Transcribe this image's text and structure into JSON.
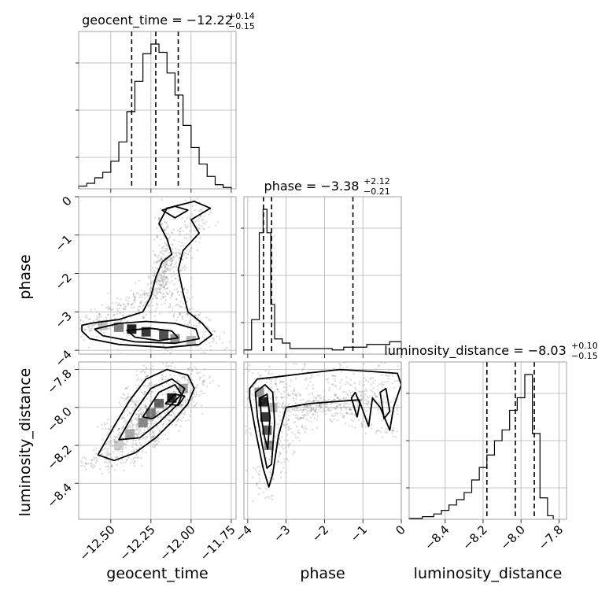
{
  "chart_data": {
    "type": "corner",
    "parameters": [
      "geocent_time",
      "phase",
      "luminosity_distance"
    ],
    "titles": {
      "geocent_time": {
        "name": "geocent_time",
        "median": "−12.22",
        "plus": "+0.14",
        "minus": "−0.15"
      },
      "phase": {
        "name": "phase",
        "median": "−3.38",
        "plus": "+2.12",
        "minus": "−0.21"
      },
      "luminosity_distance": {
        "name": "luminosity_distance",
        "median": "−8.03",
        "plus": "+0.10",
        "minus": "−0.15"
      }
    },
    "axis_labels": {
      "geocent_time": "geocent_time",
      "phase": "phase",
      "luminosity_distance": "luminosity_distance"
    },
    "ranges": {
      "geocent_time": [
        -12.7,
        -11.72
      ],
      "phase": [
        -4.1,
        0.0
      ],
      "luminosity_distance": [
        -8.59,
        -7.76
      ]
    },
    "ticks": {
      "geocent_time": [
        -12.5,
        -12.25,
        -12.0,
        -11.75
      ],
      "phase": [
        -4,
        -3,
        -2,
        -1,
        0
      ],
      "luminosity_distance": [
        -8.4,
        -8.2,
        -8.0,
        -7.8
      ]
    },
    "tick_labels": {
      "geocent_time": [
        "−12.50",
        "−12.25",
        "−12.00",
        "−11.75"
      ],
      "phase": [
        "−4",
        "−3",
        "−2",
        "−1",
        "0"
      ],
      "luminosity_distance": [
        "−8.4",
        "−8.2",
        "−8.0",
        "−7.8"
      ]
    },
    "quantiles": {
      "geocent_time": [
        -12.37,
        -12.22,
        -12.08
      ],
      "phase": [
        -3.59,
        -3.38,
        -1.26
      ],
      "luminosity_distance": [
        -8.18,
        -8.03,
        -7.93
      ]
    },
    "histograms": {
      "geocent_time": {
        "edges": [
          -12.7,
          -12.65,
          -12.6,
          -12.55,
          -12.5,
          -12.45,
          -12.4,
          -12.35,
          -12.3,
          -12.25,
          -12.2,
          -12.15,
          -12.1,
          -12.05,
          -12.0,
          -11.95,
          -11.9,
          -11.85,
          -11.8,
          -11.75
        ],
        "counts": [
          2,
          4,
          8,
          12,
          20,
          34,
          56,
          78,
          98,
          105,
          99,
          84,
          68,
          46,
          30,
          18,
          9,
          3,
          1
        ]
      },
      "phase": {
        "edges": [
          -4.1,
          -3.9,
          -3.7,
          -3.6,
          -3.5,
          -3.4,
          -3.3,
          -3.1,
          -2.9,
          -2.6,
          -2.2,
          -1.8,
          -1.5,
          -1.2,
          -0.9,
          -0.6,
          -0.3,
          0.0
        ],
        "counts": [
          3,
          25,
          88,
          105,
          88,
          36,
          11,
          8,
          4,
          4,
          4,
          3,
          5,
          5,
          7,
          7,
          9
        ]
      },
      "luminosity_distance": {
        "edges": [
          -8.59,
          -8.52,
          -8.46,
          -8.42,
          -8.38,
          -8.34,
          -8.3,
          -8.26,
          -8.22,
          -8.18,
          -8.14,
          -8.1,
          -8.06,
          -8.02,
          -7.98,
          -7.94,
          -7.9,
          -7.86,
          -7.83
        ],
        "counts": [
          1,
          3,
          6,
          10,
          16,
          22,
          30,
          44,
          58,
          72,
          88,
          100,
          122,
          136,
          162,
          96,
          24,
          4
        ]
      }
    },
    "density": {
      "phase_vs_geocent_time": [
        {
          "x": -12.37,
          "y": -3.45,
          "level": 0.95
        },
        {
          "x": -12.28,
          "y": -3.52,
          "level": 0.85
        },
        {
          "x": -12.17,
          "y": -3.6,
          "level": 0.75
        },
        {
          "x": -12.45,
          "y": -3.4,
          "level": 0.55
        },
        {
          "x": -12.1,
          "y": -3.7,
          "level": 0.45
        },
        {
          "x": -12.0,
          "y": -3.75,
          "level": 0.3
        },
        {
          "x": -12.55,
          "y": -3.35,
          "level": 0.25
        }
      ],
      "luminosity_distance_vs_geocent_time": [
        {
          "x": -12.12,
          "y": -7.95,
          "level": 0.95
        },
        {
          "x": -12.2,
          "y": -7.98,
          "level": 0.7
        },
        {
          "x": -12.25,
          "y": -8.03,
          "level": 0.6
        },
        {
          "x": -12.3,
          "y": -8.08,
          "level": 0.5
        },
        {
          "x": -12.38,
          "y": -8.14,
          "level": 0.35
        },
        {
          "x": -12.05,
          "y": -7.9,
          "level": 0.4
        },
        {
          "x": -12.45,
          "y": -8.2,
          "level": 0.2
        }
      ],
      "luminosity_distance_vs_phase": [
        {
          "x": -3.6,
          "y": -7.97,
          "level": 0.95
        },
        {
          "x": -3.55,
          "y": -8.05,
          "level": 0.85
        },
        {
          "x": -3.5,
          "y": -8.12,
          "level": 0.7
        },
        {
          "x": -3.45,
          "y": -8.2,
          "level": 0.5
        },
        {
          "x": -3.7,
          "y": -7.92,
          "level": 0.45
        },
        {
          "x": -3.35,
          "y": -8.0,
          "level": 0.3
        }
      ]
    },
    "contours": {
      "phase_vs_geocent_time": [
        [
          [
            -12.68,
            -3.35
          ],
          [
            -12.6,
            -3.28
          ],
          [
            -12.45,
            -3.2
          ],
          [
            -12.3,
            -3.0
          ],
          [
            -12.25,
            -2.6
          ],
          [
            -12.22,
            -2.1
          ],
          [
            -12.18,
            -1.7
          ],
          [
            -12.12,
            -1.5
          ],
          [
            -12.15,
            -1.1
          ],
          [
            -12.2,
            -0.7
          ],
          [
            -12.15,
            -0.3
          ],
          [
            -11.98,
            -0.12
          ],
          [
            -11.88,
            -0.3
          ],
          [
            -12.0,
            -0.6
          ],
          [
            -11.95,
            -0.95
          ],
          [
            -12.05,
            -1.4
          ],
          [
            -12.08,
            -1.9
          ],
          [
            -12.05,
            -2.5
          ],
          [
            -12.02,
            -3.0
          ],
          [
            -11.93,
            -3.3
          ],
          [
            -11.87,
            -3.6
          ],
          [
            -11.95,
            -3.85
          ],
          [
            -12.15,
            -3.93
          ],
          [
            -12.45,
            -3.85
          ],
          [
            -12.63,
            -3.7
          ],
          [
            -12.68,
            -3.5
          ],
          [
            -12.68,
            -3.35
          ]
        ],
        [
          [
            -12.6,
            -3.45
          ],
          [
            -12.45,
            -3.3
          ],
          [
            -12.28,
            -3.25
          ],
          [
            -12.1,
            -3.3
          ],
          [
            -11.97,
            -3.45
          ],
          [
            -11.95,
            -3.7
          ],
          [
            -12.1,
            -3.82
          ],
          [
            -12.35,
            -3.78
          ],
          [
            -12.55,
            -3.62
          ],
          [
            -12.6,
            -3.45
          ]
        ],
        [
          [
            -12.4,
            -3.48
          ],
          [
            -12.25,
            -3.43
          ],
          [
            -12.12,
            -3.5
          ],
          [
            -12.08,
            -3.68
          ],
          [
            -12.2,
            -3.75
          ],
          [
            -12.35,
            -3.66
          ],
          [
            -12.4,
            -3.48
          ]
        ],
        [
          [
            -12.18,
            -0.35
          ],
          [
            -12.1,
            -0.25
          ],
          [
            -12.02,
            -0.35
          ],
          [
            -12.1,
            -0.55
          ],
          [
            -12.18,
            -0.35
          ]
        ]
      ],
      "luminosity_distance_vs_geocent_time": [
        [
          [
            -12.58,
            -8.25
          ],
          [
            -12.48,
            -8.1
          ],
          [
            -12.38,
            -7.96
          ],
          [
            -12.28,
            -7.85
          ],
          [
            -12.15,
            -7.8
          ],
          [
            -12.02,
            -7.83
          ],
          [
            -11.98,
            -7.9
          ],
          [
            -12.02,
            -7.98
          ],
          [
            -12.1,
            -8.06
          ],
          [
            -12.22,
            -8.16
          ],
          [
            -12.35,
            -8.24
          ],
          [
            -12.48,
            -8.28
          ],
          [
            -12.58,
            -8.25
          ]
        ],
        [
          [
            -12.45,
            -8.17
          ],
          [
            -12.35,
            -8.02
          ],
          [
            -12.25,
            -7.9
          ],
          [
            -12.12,
            -7.85
          ],
          [
            -12.04,
            -7.9
          ],
          [
            -12.08,
            -7.98
          ],
          [
            -12.2,
            -8.08
          ],
          [
            -12.32,
            -8.16
          ],
          [
            -12.45,
            -8.17
          ]
        ],
        [
          [
            -12.3,
            -8.05
          ],
          [
            -12.2,
            -7.92
          ],
          [
            -12.1,
            -7.88
          ],
          [
            -12.06,
            -7.93
          ],
          [
            -12.14,
            -8.0
          ],
          [
            -12.24,
            -8.06
          ],
          [
            -12.3,
            -8.05
          ]
        ],
        [
          [
            -12.16,
            -7.98
          ],
          [
            -12.1,
            -7.93
          ],
          [
            -12.04,
            -7.94
          ],
          [
            -12.08,
            -7.99
          ],
          [
            -12.16,
            -7.98
          ]
        ]
      ],
      "luminosity_distance_vs_phase": [
        [
          [
            -3.95,
            -7.9
          ],
          [
            -3.75,
            -7.85
          ],
          [
            -3.3,
            -7.84
          ],
          [
            -2.5,
            -7.82
          ],
          [
            -1.6,
            -7.8
          ],
          [
            -0.8,
            -7.81
          ],
          [
            -0.1,
            -7.82
          ],
          [
            0.0,
            -7.88
          ],
          [
            -0.2,
            -8.0
          ],
          [
            -0.3,
            -8.12
          ],
          [
            -0.55,
            -8.0
          ],
          [
            -0.75,
            -7.95
          ],
          [
            -0.85,
            -8.1
          ],
          [
            -1.1,
            -7.96
          ],
          [
            -1.8,
            -7.97
          ],
          [
            -2.4,
            -7.98
          ],
          [
            -3.0,
            -8.0
          ],
          [
            -3.2,
            -8.15
          ],
          [
            -3.35,
            -8.35
          ],
          [
            -3.45,
            -8.42
          ],
          [
            -3.6,
            -8.32
          ],
          [
            -3.8,
            -8.12
          ],
          [
            -3.95,
            -7.95
          ],
          [
            -3.95,
            -7.9
          ]
        ],
        [
          [
            -3.8,
            -7.92
          ],
          [
            -3.55,
            -7.88
          ],
          [
            -3.35,
            -7.92
          ],
          [
            -3.3,
            -8.08
          ],
          [
            -3.38,
            -8.3
          ],
          [
            -3.5,
            -8.32
          ],
          [
            -3.62,
            -8.2
          ],
          [
            -3.75,
            -8.05
          ],
          [
            -3.8,
            -7.92
          ]
        ],
        [
          [
            -3.68,
            -7.95
          ],
          [
            -3.5,
            -7.93
          ],
          [
            -3.42,
            -8.05
          ],
          [
            -3.48,
            -8.22
          ],
          [
            -3.57,
            -8.15
          ],
          [
            -3.65,
            -8.05
          ],
          [
            -3.68,
            -7.95
          ]
        ],
        [
          [
            -1.3,
            -7.95
          ],
          [
            -1.2,
            -7.92
          ],
          [
            -1.08,
            -7.98
          ],
          [
            -1.15,
            -8.05
          ],
          [
            -1.3,
            -7.95
          ]
        ],
        [
          [
            -0.55,
            -7.92
          ],
          [
            -0.4,
            -7.9
          ],
          [
            -0.3,
            -8.02
          ],
          [
            -0.45,
            -8.06
          ],
          [
            -0.55,
            -7.92
          ]
        ]
      ]
    }
  }
}
